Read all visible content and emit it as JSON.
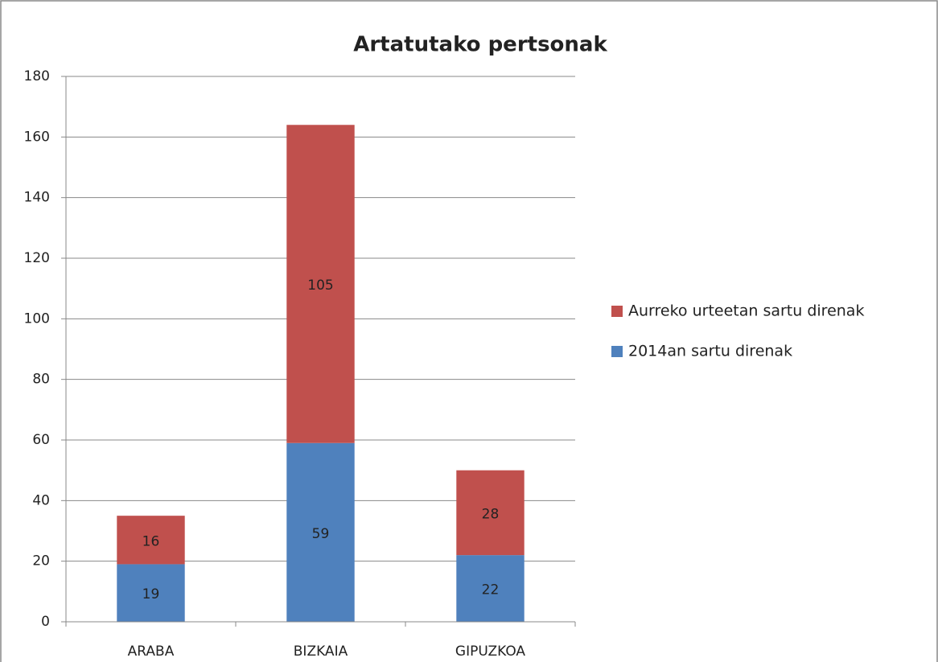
{
  "chart_data": {
    "type": "stacked_bar",
    "title": "Artatutako pertsonak",
    "categories": [
      "ARABA",
      "BIZKAIA",
      "GIPUZKOA"
    ],
    "series": [
      {
        "name": "2014an sartu direnak",
        "color": "#4f81bd",
        "values": [
          19,
          59,
          22
        ]
      },
      {
        "name": "Aurreko urteetan sartu direnak",
        "color": "#c0504d",
        "values": [
          16,
          105,
          28
        ]
      }
    ],
    "ylim": [
      0,
      180
    ],
    "yticks": [
      0,
      20,
      40,
      60,
      80,
      100,
      120,
      140,
      160,
      180
    ],
    "grid": true,
    "legend": "right"
  }
}
